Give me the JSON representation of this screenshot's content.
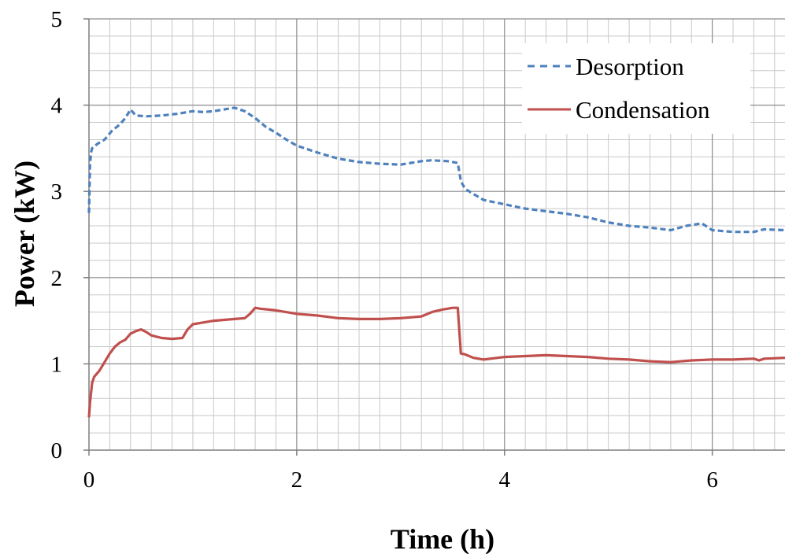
{
  "chart_data": {
    "type": "line",
    "title": "",
    "xlabel": "Time (h)",
    "ylabel": "Power (kW)",
    "xlim": [
      0,
      6.7
    ],
    "ylim": [
      0,
      5
    ],
    "x_ticks": [
      0,
      2,
      4,
      6
    ],
    "y_ticks": [
      0,
      1,
      2,
      3,
      4,
      5
    ],
    "x_tick_labels": [
      "0",
      "2",
      "4",
      "6"
    ],
    "y_tick_labels": [
      "0",
      "1",
      "2",
      "3",
      "4",
      "5"
    ],
    "grid": true,
    "legend_position": "top-right",
    "series": [
      {
        "name": "Desorption",
        "color": "#4f81bd",
        "style": "dashed",
        "x": [
          0,
          0.01,
          0.02,
          0.03,
          0.08,
          0.15,
          0.22,
          0.3,
          0.35,
          0.4,
          0.45,
          0.55,
          0.7,
          0.85,
          1.0,
          1.1,
          1.2,
          1.3,
          1.4,
          1.5,
          1.6,
          1.7,
          1.8,
          1.9,
          2.0,
          2.2,
          2.4,
          2.6,
          2.8,
          3.0,
          3.1,
          3.2,
          3.3,
          3.45,
          3.55,
          3.58,
          3.62,
          3.7,
          3.8,
          4.0,
          4.2,
          4.4,
          4.6,
          4.8,
          5.0,
          5.2,
          5.4,
          5.6,
          5.75,
          5.9,
          6.0,
          6.2,
          6.4,
          6.5,
          6.7
        ],
        "values": [
          2.75,
          3.3,
          3.45,
          3.5,
          3.55,
          3.6,
          3.7,
          3.78,
          3.85,
          3.95,
          3.88,
          3.87,
          3.88,
          3.9,
          3.93,
          3.92,
          3.93,
          3.95,
          3.97,
          3.93,
          3.85,
          3.75,
          3.68,
          3.6,
          3.53,
          3.45,
          3.38,
          3.34,
          3.32,
          3.31,
          3.33,
          3.35,
          3.36,
          3.35,
          3.33,
          3.12,
          3.03,
          2.97,
          2.9,
          2.85,
          2.8,
          2.77,
          2.74,
          2.7,
          2.64,
          2.6,
          2.58,
          2.55,
          2.6,
          2.63,
          2.55,
          2.53,
          2.53,
          2.56,
          2.55
        ]
      },
      {
        "name": "Condensation",
        "color": "#c0504d",
        "style": "solid",
        "x": [
          0,
          0.01,
          0.03,
          0.05,
          0.1,
          0.15,
          0.2,
          0.25,
          0.3,
          0.35,
          0.4,
          0.45,
          0.5,
          0.55,
          0.6,
          0.7,
          0.8,
          0.9,
          0.95,
          1.0,
          1.1,
          1.2,
          1.3,
          1.4,
          1.5,
          1.55,
          1.6,
          1.65,
          1.8,
          2.0,
          2.2,
          2.4,
          2.6,
          2.8,
          3.0,
          3.2,
          3.3,
          3.4,
          3.5,
          3.55,
          3.57,
          3.58,
          3.62,
          3.7,
          3.8,
          4.0,
          4.2,
          4.4,
          4.6,
          4.8,
          5.0,
          5.2,
          5.4,
          5.6,
          5.8,
          6.0,
          6.2,
          6.4,
          6.45,
          6.5,
          6.7
        ],
        "values": [
          0.38,
          0.55,
          0.78,
          0.85,
          0.92,
          1.02,
          1.12,
          1.2,
          1.25,
          1.28,
          1.35,
          1.38,
          1.4,
          1.37,
          1.33,
          1.3,
          1.29,
          1.3,
          1.4,
          1.46,
          1.48,
          1.5,
          1.51,
          1.52,
          1.53,
          1.58,
          1.65,
          1.64,
          1.62,
          1.58,
          1.56,
          1.53,
          1.52,
          1.52,
          1.53,
          1.55,
          1.6,
          1.63,
          1.65,
          1.65,
          1.3,
          1.12,
          1.11,
          1.07,
          1.05,
          1.08,
          1.09,
          1.1,
          1.09,
          1.08,
          1.06,
          1.05,
          1.03,
          1.02,
          1.04,
          1.05,
          1.05,
          1.06,
          1.04,
          1.06,
          1.07
        ]
      }
    ]
  }
}
